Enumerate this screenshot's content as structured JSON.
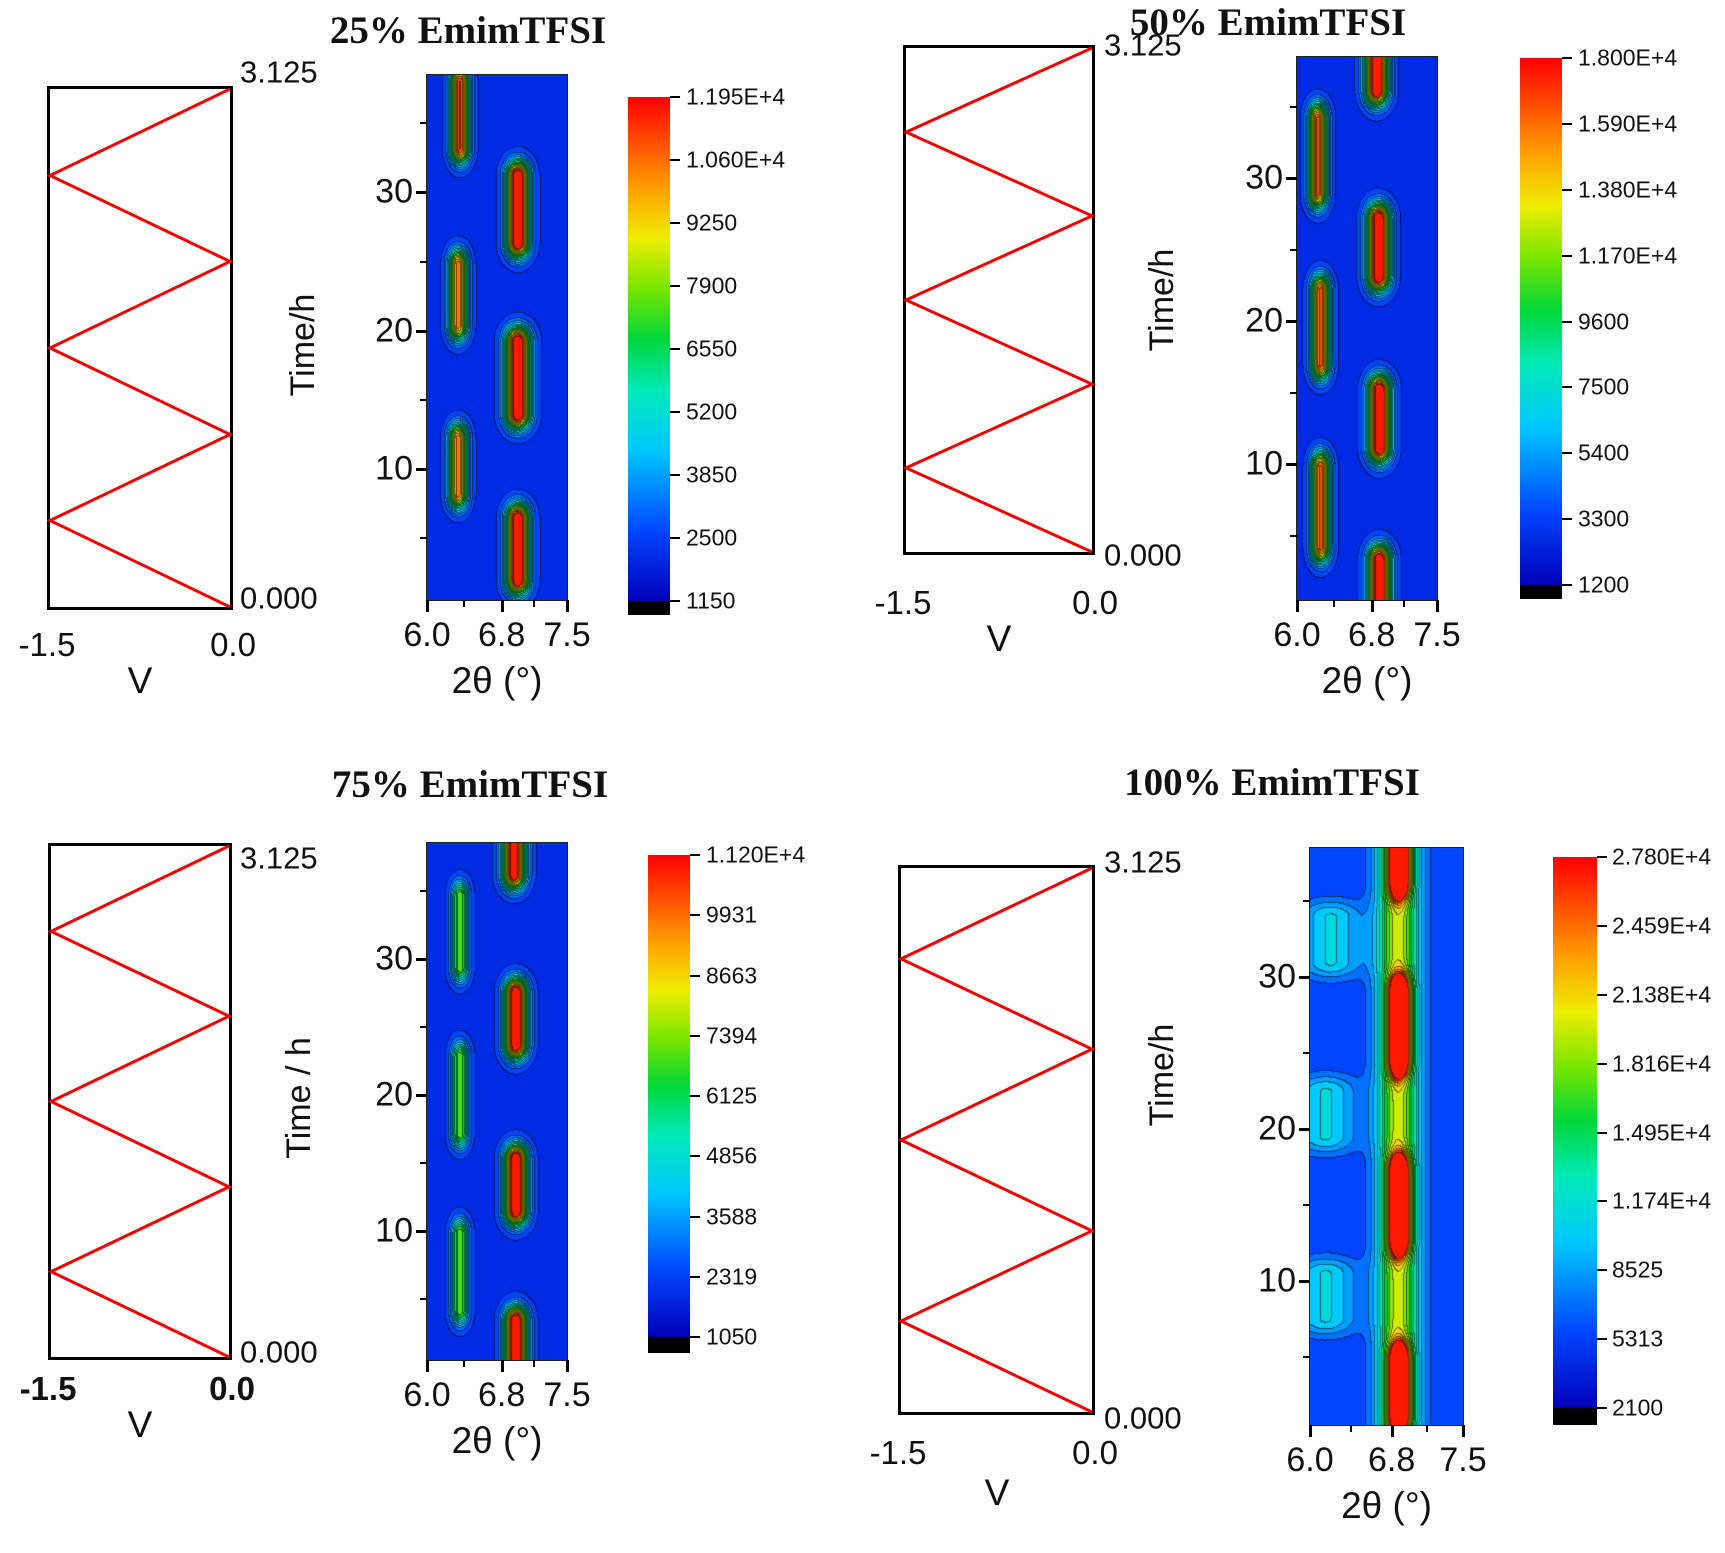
{
  "chart_data": [
    {
      "type": "heatmap",
      "title": "25% EmimTFSI",
      "xlabel": "2θ (°)",
      "x_ticks": [
        "6.0",
        "6.8",
        "7.5"
      ],
      "x_minor_ticks": [
        6.4,
        7.15
      ],
      "x_range": [
        6.0,
        7.5
      ],
      "y_ticks": [
        "10",
        "20",
        "30"
      ],
      "y_minor_ticks": [
        5,
        15,
        25,
        35
      ],
      "y_range": [
        0.5,
        38.5
      ],
      "colorbar_labels": [
        "1.195E+4",
        "1.060E+4",
        "9250",
        "7900",
        "6550",
        "5200",
        "3850",
        "2500",
        "1150"
      ],
      "colorbar_min": 1150,
      "colorbar_max": 11950,
      "background_level": 0.09,
      "peaks": [
        {
          "two_theta": 6.97,
          "sigma": 0.12,
          "time": 4.2,
          "half_duration": 2.2,
          "intensity": 1.0
        },
        {
          "two_theta": 6.33,
          "sigma": 0.1,
          "time": 10.2,
          "half_duration": 2.0,
          "intensity": 0.78
        },
        {
          "two_theta": 6.97,
          "sigma": 0.13,
          "time": 16.6,
          "half_duration": 2.6,
          "intensity": 1.0
        },
        {
          "two_theta": 6.33,
          "sigma": 0.1,
          "time": 22.6,
          "half_duration": 2.2,
          "intensity": 0.78
        },
        {
          "two_theta": 6.97,
          "sigma": 0.12,
          "time": 28.8,
          "half_duration": 2.4,
          "intensity": 1.0
        },
        {
          "two_theta": 6.35,
          "sigma": 0.1,
          "time": 35.6,
          "half_duration": 2.4,
          "intensity": 0.86
        }
      ],
      "voltage_profile": {
        "x_label": "V",
        "x_ticks": [
          "-1.5",
          "0.0"
        ],
        "x_range": [
          -1.5,
          0.0
        ],
        "time_label": "Time/h",
        "time_ticks": [
          "0.000",
          "3.125"
        ],
        "cycles": 3,
        "waveform": "triangle",
        "line_color": "#f40000",
        "bold_x_ticks": false
      }
    },
    {
      "type": "heatmap",
      "title": "50% EmimTFSI",
      "xlabel": "2θ (°)",
      "x_ticks": [
        "6.0",
        "6.8",
        "7.5"
      ],
      "x_minor_ticks": [
        6.4,
        7.15
      ],
      "x_range": [
        6.0,
        7.5
      ],
      "y_ticks": [
        "10",
        "20",
        "30"
      ],
      "y_minor_ticks": [
        5,
        15,
        25,
        35
      ],
      "y_range": [
        0.5,
        38.5
      ],
      "colorbar_labels": [
        "1.800E+4",
        "1.590E+4",
        "1.380E+4",
        "1.170E+4",
        "9600",
        "7500",
        "5400",
        "3300",
        "1200"
      ],
      "colorbar_min": 1200,
      "colorbar_max": 18000,
      "background_level": 0.09,
      "peaks": [
        {
          "two_theta": 6.88,
          "sigma": 0.12,
          "time": 1.8,
          "half_duration": 1.5,
          "intensity": 1.0
        },
        {
          "two_theta": 6.25,
          "sigma": 0.1,
          "time": 7.0,
          "half_duration": 2.8,
          "intensity": 0.82
        },
        {
          "two_theta": 6.88,
          "sigma": 0.12,
          "time": 13.2,
          "half_duration": 2.0,
          "intensity": 1.0
        },
        {
          "two_theta": 6.25,
          "sigma": 0.1,
          "time": 19.6,
          "half_duration": 2.6,
          "intensity": 0.82
        },
        {
          "two_theta": 6.87,
          "sigma": 0.12,
          "time": 25.2,
          "half_duration": 2.0,
          "intensity": 1.0
        },
        {
          "two_theta": 6.22,
          "sigma": 0.1,
          "time": 31.6,
          "half_duration": 2.6,
          "intensity": 0.82
        },
        {
          "two_theta": 6.85,
          "sigma": 0.12,
          "time": 37.6,
          "half_duration": 1.4,
          "intensity": 1.0
        }
      ],
      "voltage_profile": {
        "x_label": "V",
        "x_ticks": [
          "-1.5",
          "0.0"
        ],
        "x_range": [
          -1.5,
          0.0
        ],
        "time_label": "Time/h",
        "time_ticks": [
          "0.000",
          "3.125"
        ],
        "cycles": 3,
        "waveform": "triangle",
        "line_color": "#f40000",
        "bold_x_ticks": false
      }
    },
    {
      "type": "heatmap",
      "title": "75% EmimTFSI",
      "xlabel": "2θ (°)",
      "x_ticks": [
        "6.0",
        "6.8",
        "7.5"
      ],
      "x_minor_ticks": [
        6.4,
        7.15
      ],
      "x_range": [
        6.0,
        7.5
      ],
      "y_ticks": [
        "10",
        "20",
        "30"
      ],
      "y_minor_ticks": [
        5,
        15,
        25,
        35
      ],
      "y_range": [
        0.5,
        38.5
      ],
      "colorbar_labels": [
        "1.120E+4",
        "9931",
        "8663",
        "7394",
        "6125",
        "4856",
        "3588",
        "2319",
        "1050"
      ],
      "colorbar_min": 1050,
      "colorbar_max": 11200,
      "background_level": 0.09,
      "peaks": [
        {
          "two_theta": 6.95,
          "sigma": 0.12,
          "time": 1.8,
          "half_duration": 1.6,
          "intensity": 1.0
        },
        {
          "two_theta": 6.35,
          "sigma": 0.09,
          "time": 7.0,
          "half_duration": 2.8,
          "intensity": 0.52
        },
        {
          "two_theta": 6.95,
          "sigma": 0.12,
          "time": 13.4,
          "half_duration": 1.9,
          "intensity": 1.0
        },
        {
          "two_theta": 6.35,
          "sigma": 0.09,
          "time": 20.0,
          "half_duration": 2.8,
          "intensity": 0.52
        },
        {
          "two_theta": 6.95,
          "sigma": 0.12,
          "time": 25.6,
          "half_duration": 1.9,
          "intensity": 1.0
        },
        {
          "two_theta": 6.35,
          "sigma": 0.09,
          "time": 32.0,
          "half_duration": 2.6,
          "intensity": 0.52
        },
        {
          "two_theta": 6.93,
          "sigma": 0.12,
          "time": 37.6,
          "half_duration": 1.4,
          "intensity": 0.95
        }
      ],
      "voltage_profile": {
        "x_label": "V",
        "x_ticks": [
          "-1.5",
          "0.0"
        ],
        "x_range": [
          -1.5,
          0.0
        ],
        "time_label": "Time / h",
        "time_ticks": [
          "0.000",
          "3.125"
        ],
        "cycles": 3,
        "waveform": "triangle",
        "line_color": "#f40000",
        "bold_x_ticks": true
      }
    },
    {
      "type": "heatmap",
      "title": "100% EmimTFSI",
      "xlabel": "2θ (°)",
      "x_ticks": [
        "6.0",
        "6.8",
        "7.5"
      ],
      "x_minor_ticks": [
        6.4,
        7.15
      ],
      "x_range": [
        6.0,
        7.5
      ],
      "y_ticks": [
        "10",
        "20",
        "30"
      ],
      "y_minor_ticks": [
        5,
        15,
        25,
        35
      ],
      "y_range": [
        0.5,
        38.5
      ],
      "colorbar_labels": [
        "2.780E+4",
        "2.459E+4",
        "2.138E+4",
        "1.816E+4",
        "1.495E+4",
        "1.174E+4",
        "8525",
        "5313",
        "2100"
      ],
      "colorbar_min": 2100,
      "colorbar_max": 27800,
      "background_level": 0.12,
      "peaks": [
        {
          "two_theta": 6.86,
          "sigma": 0.2,
          "time": 19.5,
          "half_duration": 19.0,
          "intensity": 0.58
        },
        {
          "two_theta": 6.87,
          "sigma": 0.09,
          "time": 3.0,
          "half_duration": 1.8,
          "intensity": 1.0
        },
        {
          "two_theta": 6.87,
          "sigma": 0.09,
          "time": 15.0,
          "half_duration": 2.2,
          "intensity": 1.0
        },
        {
          "two_theta": 6.87,
          "sigma": 0.09,
          "time": 26.8,
          "half_duration": 2.2,
          "intensity": 1.0
        },
        {
          "two_theta": 6.87,
          "sigma": 0.09,
          "time": 37.5,
          "half_duration": 1.2,
          "intensity": 0.95
        },
        {
          "two_theta": 6.15,
          "sigma": 0.3,
          "time": 9.0,
          "half_duration": 1.5,
          "intensity": 0.22
        },
        {
          "two_theta": 6.15,
          "sigma": 0.3,
          "time": 21.0,
          "half_duration": 1.5,
          "intensity": 0.22
        },
        {
          "two_theta": 6.2,
          "sigma": 0.3,
          "time": 32.5,
          "half_duration": 1.5,
          "intensity": 0.22
        }
      ],
      "voltage_profile": {
        "x_label": "V",
        "x_ticks": [
          "-1.5",
          "0.0"
        ],
        "x_range": [
          -1.5,
          0.0
        ],
        "time_label": "Time/h",
        "time_ticks": [
          "0.000",
          "3.125"
        ],
        "cycles": 3,
        "waveform": "triangle",
        "line_color": "#f40000",
        "bold_x_ticks": false
      }
    }
  ]
}
